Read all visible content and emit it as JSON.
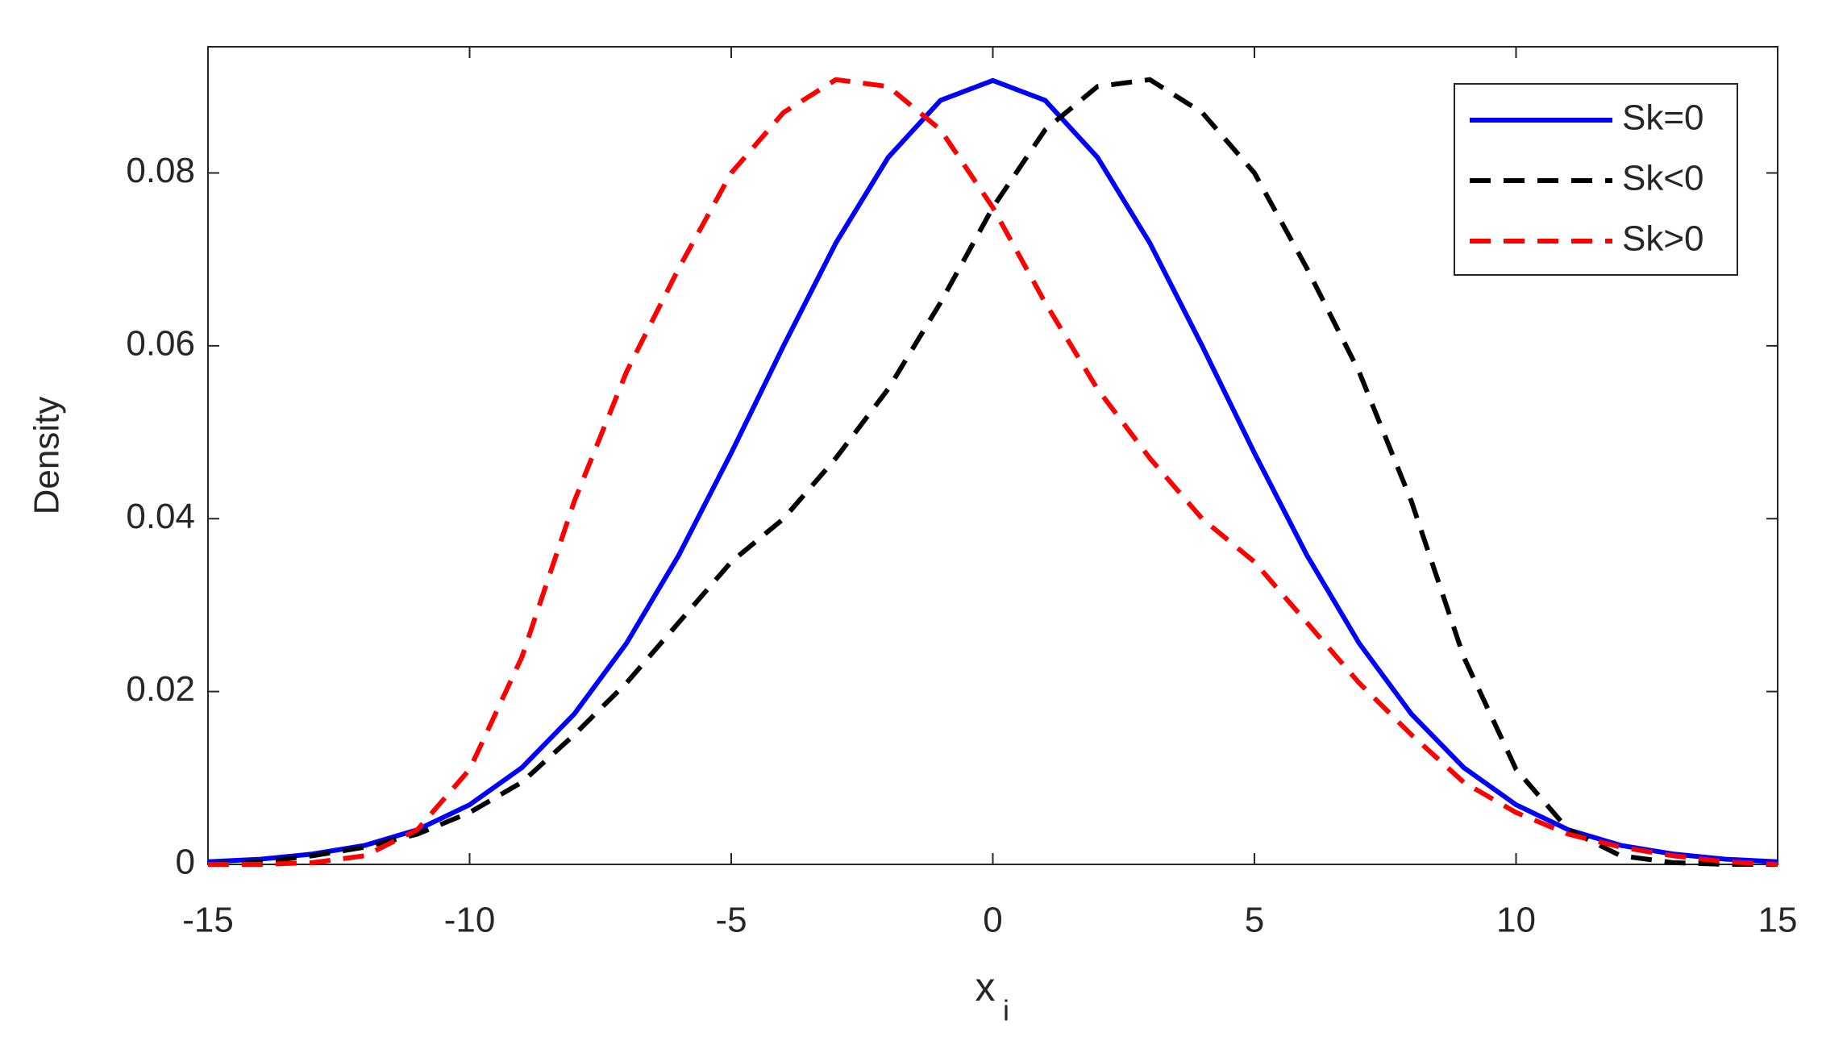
{
  "chart_data": {
    "type": "line",
    "xlabel": "x",
    "xlabel_subscript": "i",
    "ylabel": "Density",
    "x": [
      -15,
      -14,
      -13,
      -12,
      -11,
      -10,
      -9,
      -8,
      -7,
      -6,
      -5,
      -4,
      -3,
      -2,
      -1,
      0,
      1,
      2,
      3,
      4,
      5,
      6,
      7,
      8,
      9,
      10,
      11,
      12,
      13,
      14,
      15
    ],
    "series": [
      {
        "name": "Sk=0",
        "color": "#0000ff",
        "dash": false,
        "values": [
          0.0003,
          0.0006,
          0.0012,
          0.0022,
          0.004,
          0.0069,
          0.0112,
          0.0174,
          0.0256,
          0.0358,
          0.0476,
          0.06,
          0.0719,
          0.0818,
          0.0884,
          0.0907,
          0.0884,
          0.0818,
          0.0719,
          0.06,
          0.0476,
          0.0358,
          0.0256,
          0.0174,
          0.0112,
          0.0069,
          0.004,
          0.0022,
          0.0012,
          0.0006,
          0.0003
        ]
      },
      {
        "name": "Sk<0",
        "color": "#000000",
        "dash": true,
        "values": [
          0,
          0.0003,
          0.001,
          0.002,
          0.0035,
          0.006,
          0.0095,
          0.015,
          0.021,
          0.028,
          0.035,
          0.04,
          0.047,
          0.055,
          0.065,
          0.076,
          0.085,
          0.09,
          0.0908,
          0.087,
          0.08,
          0.069,
          0.057,
          0.042,
          0.024,
          0.011,
          0.004,
          0.001,
          0.0002,
          0,
          0
        ]
      },
      {
        "name": "Sk>0",
        "color": "#ff0000",
        "dash": true,
        "values": [
          0,
          0,
          0.0002,
          0.001,
          0.004,
          0.011,
          0.024,
          0.042,
          0.057,
          0.069,
          0.08,
          0.087,
          0.0908,
          0.09,
          0.085,
          0.076,
          0.065,
          0.055,
          0.047,
          0.04,
          0.035,
          0.028,
          0.021,
          0.015,
          0.0095,
          0.006,
          0.0035,
          0.002,
          0.001,
          0.0003,
          0
        ]
      }
    ],
    "xlim": [
      -15,
      15
    ],
    "xticks": [
      -15,
      -10,
      -5,
      0,
      5,
      10,
      15
    ],
    "ylim": [
      0,
      0.0946
    ],
    "yticks": [
      0,
      0.02,
      0.04,
      0.06,
      0.08
    ],
    "legend": "top-right"
  }
}
